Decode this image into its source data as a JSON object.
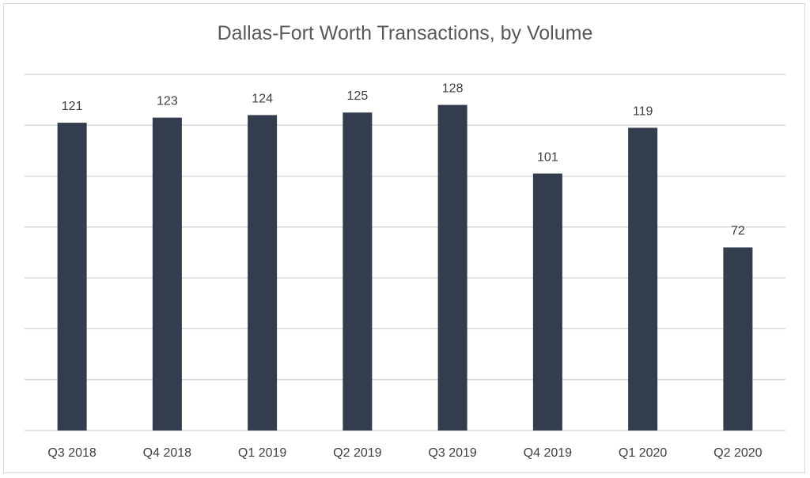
{
  "chart_data": {
    "type": "bar",
    "title": "Dallas-Fort Worth Transactions, by Volume",
    "categories": [
      "Q3 2018",
      "Q4 2018",
      "Q1 2019",
      "Q2 2019",
      "Q3 2019",
      "Q4 2019",
      "Q1 2020",
      "Q2 2020"
    ],
    "values": [
      121,
      123,
      124,
      125,
      128,
      101,
      119,
      72
    ],
    "ylim": [
      0,
      140
    ],
    "grid": true,
    "colors": {
      "bar": "#333d4e"
    }
  }
}
